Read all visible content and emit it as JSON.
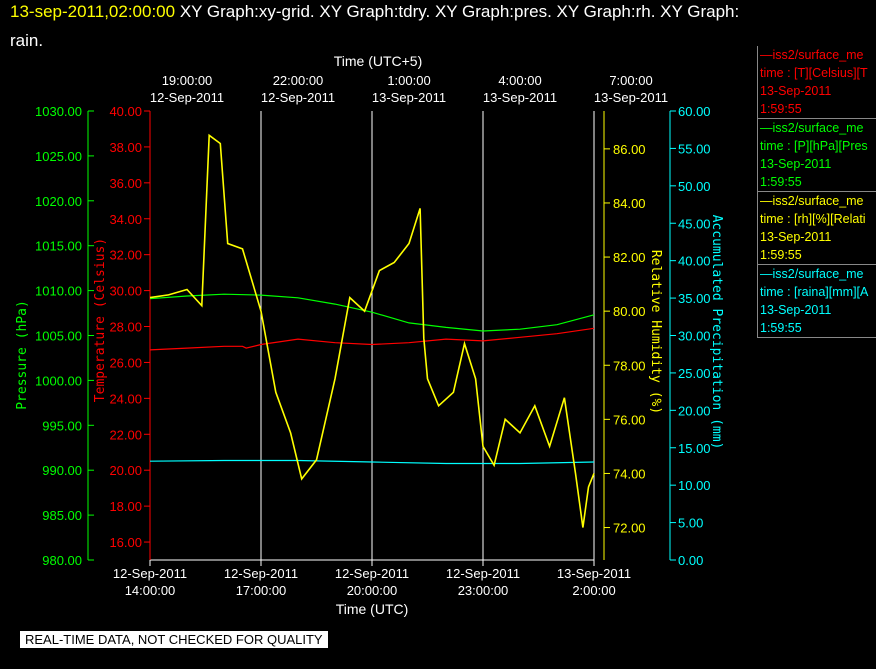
{
  "header": {
    "datetime": "13-sep-2011,02:00:00",
    "graphs_line1": " XY Graph:xy-grid.  XY Graph:tdry.  XY Graph:pres.  XY Graph:rh.  XY Graph:",
    "graphs_line2": "rain."
  },
  "colors": {
    "pressure": "#00ff00",
    "temperature": "#ff0000",
    "humidity": "#ffff00",
    "precip": "#00ffff",
    "grid": "#ffffff",
    "background": "#000000"
  },
  "legend": [
    {
      "line1": "—iss2/surface_me",
      "line2": "time : [T][Celsius][T",
      "line3": "13-Sep-2011",
      "line4": "1:59:55",
      "color": "#ff0000"
    },
    {
      "line1": "—iss2/surface_me",
      "line2": "time : [P][hPa][Pres",
      "line3": "13-Sep-2011",
      "line4": "1:59:55",
      "color": "#00ff00"
    },
    {
      "line1": "—iss2/surface_me",
      "line2": "time : [rh][%][Relati",
      "line3": "13-Sep-2011",
      "line4": "1:59:55",
      "color": "#ffff00"
    },
    {
      "line1": "—iss2/surface_me",
      "line2": "time : [raina][mm][A",
      "line3": "13-Sep-2011",
      "line4": "1:59:55",
      "color": "#00ffff"
    }
  ],
  "disclaimer": "REAL-TIME DATA, NOT CHECKED FOR QUALITY",
  "chart_data": {
    "type": "line",
    "top_axis": {
      "title": "Time (UTC+5)",
      "ticks": [
        {
          "time": "19:00:00",
          "date": "12-Sep-2011"
        },
        {
          "time": "22:00:00",
          "date": "12-Sep-2011"
        },
        {
          "time": "1:00:00",
          "date": "13-Sep-2011"
        },
        {
          "time": "4:00:00",
          "date": "13-Sep-2011"
        },
        {
          "time": "7:00:00",
          "date": "13-Sep-2011"
        }
      ]
    },
    "bottom_axis": {
      "title": "Time (UTC)",
      "xlim": [
        14,
        26
      ],
      "ticks": [
        {
          "date": "12-Sep-2011",
          "time": "14:00:00"
        },
        {
          "date": "12-Sep-2011",
          "time": "17:00:00"
        },
        {
          "date": "12-Sep-2011",
          "time": "20:00:00"
        },
        {
          "date": "12-Sep-2011",
          "time": "23:00:00"
        },
        {
          "date": "13-Sep-2011",
          "time": "2:00:00"
        }
      ]
    },
    "y_axes": {
      "pressure": {
        "label": "Pressure (hPa)",
        "ylim": [
          980,
          1030
        ],
        "ticks": [
          "980.00",
          "985.00",
          "990.00",
          "995.00",
          "1000.00",
          "1005.00",
          "1010.00",
          "1015.00",
          "1020.00",
          "1025.00",
          "1030.00"
        ]
      },
      "temperature": {
        "label": "Temperature (Celsius)",
        "ylim": [
          15,
          40
        ],
        "ticks": [
          "16.00",
          "18.00",
          "20.00",
          "22.00",
          "24.00",
          "26.00",
          "28.00",
          "30.00",
          "32.00",
          "34.00",
          "36.00",
          "38.00",
          "40.00"
        ]
      },
      "humidity": {
        "label": "Relative Humidity (%)",
        "ylim": [
          70.8,
          87.4
        ],
        "ticks": [
          "72.00",
          "74.00",
          "76.00",
          "78.00",
          "80.00",
          "82.00",
          "84.00",
          "86.00"
        ]
      },
      "precip": {
        "label": "Accumulated Precipitation (mm)",
        "ylim": [
          0,
          60
        ],
        "ticks": [
          "0.00",
          "5.00",
          "10.00",
          "15.00",
          "20.00",
          "25.00",
          "30.00",
          "35.00",
          "40.00",
          "45.00",
          "50.00",
          "55.00",
          "60.00"
        ]
      }
    },
    "grid": true,
    "series": [
      {
        "key": "pressure",
        "axis": "pressure",
        "x": [
          14.0,
          15.0,
          16.0,
          17.0,
          18.0,
          19.0,
          20.0,
          21.0,
          22.0,
          23.0,
          24.0,
          25.0,
          26.0
        ],
        "values": [
          1009.1,
          1009.4,
          1009.6,
          1009.5,
          1009.2,
          1008.5,
          1007.6,
          1006.4,
          1005.9,
          1005.5,
          1005.7,
          1006.2,
          1007.3
        ]
      },
      {
        "key": "temperature",
        "axis": "temperature",
        "x": [
          14.0,
          15.0,
          16.0,
          16.5,
          16.6,
          17.0,
          18.0,
          19.0,
          20.0,
          21.0,
          22.0,
          23.0,
          24.0,
          25.0,
          26.0
        ],
        "values": [
          26.7,
          26.8,
          26.9,
          26.9,
          26.8,
          27.0,
          27.3,
          27.1,
          27.0,
          27.1,
          27.3,
          27.2,
          27.4,
          27.6,
          27.9
        ]
      },
      {
        "key": "humidity",
        "axis": "humidity",
        "x": [
          14.0,
          14.5,
          15.0,
          15.4,
          15.6,
          15.9,
          16.1,
          16.5,
          17.0,
          17.4,
          17.8,
          18.1,
          18.5,
          19.0,
          19.4,
          19.8,
          20.2,
          20.6,
          21.0,
          21.3,
          21.4,
          21.5,
          21.8,
          22.2,
          22.5,
          22.8,
          23.0,
          23.3,
          23.6,
          24.0,
          24.4,
          24.8,
          25.2,
          25.5,
          25.7,
          25.85,
          26.0
        ],
        "values": [
          80.5,
          80.6,
          80.8,
          80.2,
          86.5,
          86.2,
          82.5,
          82.3,
          80.0,
          77.0,
          75.5,
          73.8,
          74.5,
          77.5,
          80.5,
          80.0,
          81.5,
          81.8,
          82.5,
          83.8,
          79.0,
          77.5,
          76.5,
          77.0,
          78.8,
          77.5,
          75.0,
          74.3,
          76.0,
          75.5,
          76.5,
          75.0,
          76.8,
          74.0,
          72.0,
          73.5,
          74.0
        ]
      },
      {
        "key": "precip",
        "axis": "precip",
        "x": [
          14.0,
          16.0,
          18.0,
          20.0,
          22.0,
          24.0,
          26.0
        ],
        "values": [
          13.2,
          13.3,
          13.3,
          13.1,
          12.9,
          12.9,
          13.1
        ]
      }
    ]
  }
}
